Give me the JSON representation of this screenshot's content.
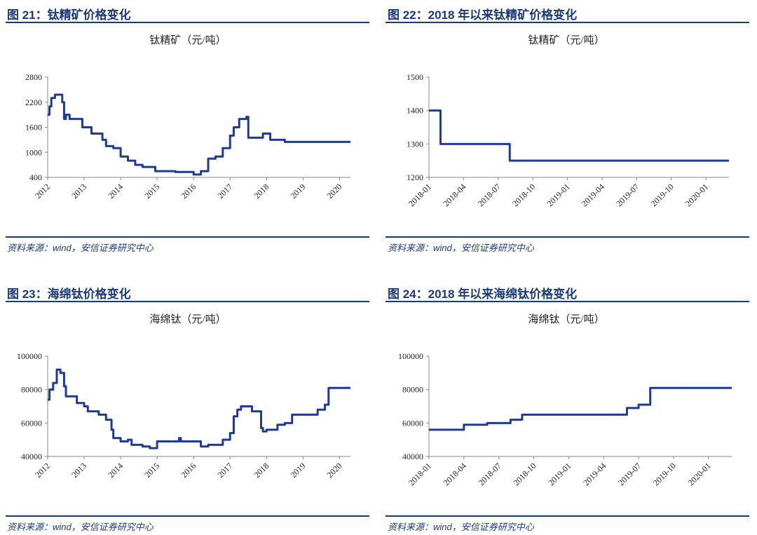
{
  "figures": [
    {
      "heading": "图 21：钛精矿价格变化",
      "source": "资料来源：wind，安信证券研究中心"
    },
    {
      "heading": "图 22：2018 年以来钛精矿价格变化",
      "source": "资料来源：wind，安信证券研究中心"
    },
    {
      "heading": "图 23：海绵钛价格变化",
      "source": "资料来源：wind，安信证券研究中心"
    },
    {
      "heading": "图 24：2018 年以来海绵钛价格变化",
      "source": "资料来源：wind，安信证券研究中心"
    }
  ],
  "chart_data": [
    {
      "type": "line",
      "step": "after",
      "title": "钛精矿（元/吨）",
      "color": "#1f3a93",
      "x": [
        2012.0,
        2012.05,
        2012.1,
        2012.2,
        2012.4,
        2012.45,
        2012.5,
        2012.6,
        2012.95,
        2013.2,
        2013.5,
        2013.6,
        2013.8,
        2014.0,
        2014.2,
        2014.4,
        2014.6,
        2014.95,
        2015.5,
        2016.0,
        2016.2,
        2016.4,
        2016.6,
        2016.8,
        2017.0,
        2017.1,
        2017.25,
        2017.45,
        2017.5,
        2017.9,
        2018.1,
        2018.5,
        2020.3
      ],
      "values": [
        1900,
        2100,
        2300,
        2380,
        2200,
        1800,
        1900,
        1800,
        1600,
        1450,
        1300,
        1150,
        1100,
        900,
        800,
        700,
        650,
        550,
        530,
        470,
        550,
        850,
        900,
        1100,
        1400,
        1600,
        1800,
        1850,
        1350,
        1450,
        1300,
        1250,
        1250
      ],
      "xlim": [
        2012,
        2020.3
      ],
      "xticks": [
        2012,
        2013,
        2014,
        2015,
        2016,
        2017,
        2018,
        2019,
        2020
      ],
      "ylim": [
        400,
        2800
      ],
      "yticks": [
        400,
        1000,
        1600,
        2200,
        2800
      ]
    },
    {
      "type": "line",
      "step": "after",
      "title": "钛精矿（元/吨）",
      "color": "#1f3a93",
      "x": [
        "2018-01",
        "2018-02",
        "2018-08",
        "2020-03"
      ],
      "values": [
        1400,
        1300,
        1250,
        1250
      ],
      "xlim": [
        "2018-01",
        "2020-03"
      ],
      "xticks": [
        "2018-01",
        "2018-04",
        "2018-07",
        "2018-10",
        "2019-01",
        "2019-04",
        "2019-07",
        "2019-10",
        "2020-01"
      ],
      "ylim": [
        1200,
        1500
      ],
      "yticks": [
        1200,
        1300,
        1400,
        1500
      ]
    },
    {
      "type": "line",
      "step": "after",
      "title": "海绵钛（元/吨）",
      "color": "#1f3a93",
      "x": [
        2012.0,
        2012.05,
        2012.15,
        2012.25,
        2012.35,
        2012.45,
        2012.5,
        2012.8,
        2013.0,
        2013.1,
        2013.4,
        2013.6,
        2013.75,
        2013.8,
        2014.0,
        2014.2,
        2014.3,
        2014.6,
        2014.8,
        2015.0,
        2015.6,
        2015.65,
        2016.2,
        2016.4,
        2016.8,
        2017.0,
        2017.1,
        2017.2,
        2017.3,
        2017.6,
        2017.85,
        2017.9,
        2018.0,
        2018.3,
        2018.5,
        2018.7,
        2019.4,
        2019.6,
        2019.7,
        2020.3
      ],
      "values": [
        74000,
        80000,
        84000,
        92000,
        90000,
        82000,
        76000,
        72000,
        70000,
        67000,
        65000,
        62000,
        56000,
        51000,
        49000,
        50000,
        47000,
        46000,
        45000,
        49000,
        51000,
        49000,
        46000,
        47000,
        50000,
        54000,
        64000,
        68000,
        70000,
        67000,
        57000,
        55000,
        56000,
        59000,
        60000,
        65000,
        68000,
        71000,
        81000,
        81000
      ],
      "xlim": [
        2012,
        2020.3
      ],
      "xticks": [
        2012,
        2013,
        2014,
        2015,
        2016,
        2017,
        2018,
        2019,
        2020
      ],
      "ylim": [
        40000,
        100000
      ],
      "yticks": [
        40000,
        60000,
        80000,
        100000
      ]
    },
    {
      "type": "line",
      "step": "after",
      "title": "海绵钛（元/吨）",
      "color": "#1f3a93",
      "x": [
        "2018-01",
        "2018-04",
        "2018-06",
        "2018-08",
        "2018-09",
        "2019-06",
        "2019-07",
        "2019-08",
        "2020-03"
      ],
      "values": [
        56000,
        59000,
        60000,
        62000,
        65000,
        69000,
        71000,
        81000,
        81000
      ],
      "xlim": [
        "2018-01",
        "2020-03"
      ],
      "xticks": [
        "2018-01",
        "2018-04",
        "2018-07",
        "2018-10",
        "2019-01",
        "2019-04",
        "2019-07",
        "2019-10",
        "2020-01"
      ],
      "ylim": [
        40000,
        100000
      ],
      "yticks": [
        40000,
        60000,
        80000,
        100000
      ]
    }
  ]
}
